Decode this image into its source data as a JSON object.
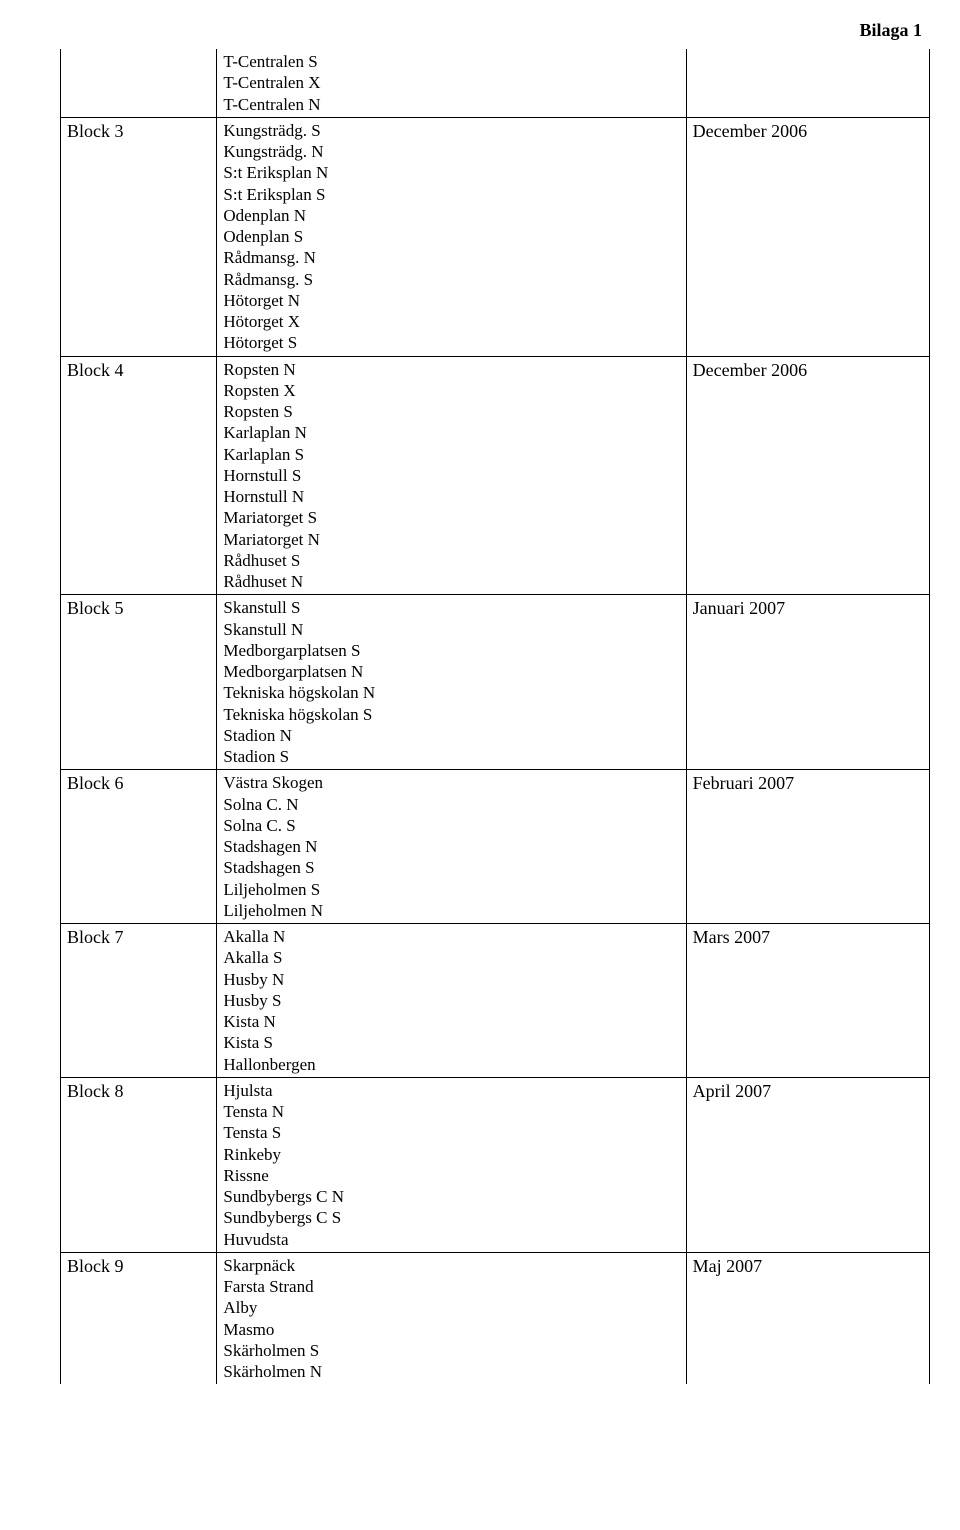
{
  "header": {
    "title": "Bilaga 1"
  },
  "pre_rows": [
    {
      "label": "",
      "date": "",
      "items": [
        "T-Centralen S",
        "T-Centralen X",
        "T-Centralen N"
      ]
    }
  ],
  "rows": [
    {
      "label": "Block 3",
      "date": "December 2006",
      "items": [
        "Kungsträdg. S",
        "Kungsträdg. N",
        "S:t Eriksplan N",
        "S:t Eriksplan S",
        "Odenplan N",
        "Odenplan S",
        "Rådmansg. N",
        "Rådmansg. S",
        "Hötorget N",
        "Hötorget X",
        "Hötorget S"
      ]
    },
    {
      "label": "Block 4",
      "date": "December 2006",
      "items": [
        "Ropsten N",
        "Ropsten X",
        "Ropsten S",
        "Karlaplan N",
        "Karlaplan S",
        "Hornstull S",
        "Hornstull N",
        "Mariatorget S",
        "Mariatorget N",
        "Rådhuset S",
        "Rådhuset N"
      ]
    },
    {
      "label": "Block 5",
      "date": "Januari 2007",
      "items": [
        "Skanstull S",
        "Skanstull N",
        "Medborgarplatsen S",
        "Medborgarplatsen N",
        "Tekniska högskolan N",
        "Tekniska högskolan S",
        "Stadion N",
        "Stadion S"
      ]
    },
    {
      "label": "Block 6",
      "date": "Februari 2007",
      "items": [
        "Västra Skogen",
        "Solna C. N",
        "Solna C. S",
        "Stadshagen N",
        "Stadshagen S",
        "Liljeholmen S",
        "Liljeholmen N"
      ]
    },
    {
      "label": "Block 7",
      "date": "Mars 2007",
      "items": [
        "Akalla N",
        "Akalla S",
        "Husby N",
        "Husby S",
        "Kista N",
        "Kista S",
        "Hallonbergen"
      ]
    },
    {
      "label": "Block 8",
      "date": "April 2007",
      "items": [
        "Hjulsta",
        "Tensta N",
        "Tensta S",
        "Rinkeby",
        "Rissne",
        "Sundbybergs C N",
        "Sundbybergs C S",
        "Huvudsta"
      ]
    },
    {
      "label": "Block 9",
      "date": "Maj 2007",
      "items": [
        "Skarpnäck",
        "Farsta Strand",
        "Alby",
        "Masmo",
        "Skärholmen S",
        "Skärholmen N"
      ]
    }
  ]
}
